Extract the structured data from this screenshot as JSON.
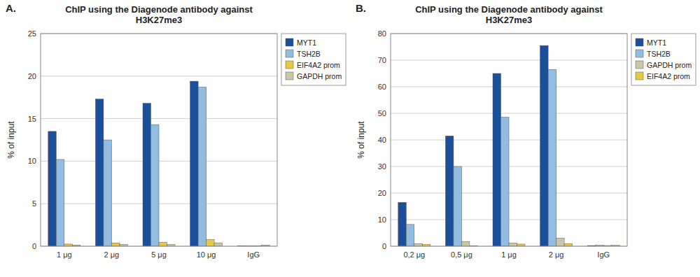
{
  "chart_data": [
    {
      "type": "bar",
      "annotations": [
        "A."
      ],
      "title": "ChIP using the Diagenode antibody against\nH3K27me3",
      "y_label": "% of input",
      "categories": [
        "1 μg",
        "2 μg",
        "5 μg",
        "10 μg",
        "IgG"
      ],
      "series": [
        {
          "name": "MYT1",
          "color": "#1B4F99",
          "values": [
            13.5,
            17.3,
            16.8,
            19.4,
            0.05
          ]
        },
        {
          "name": "TSH2B",
          "color": "#92BDE0",
          "values": [
            10.2,
            12.5,
            14.3,
            18.7,
            0.04
          ]
        },
        {
          "name": "EIF4A2 prom",
          "color": "#E8C840",
          "values": [
            0.25,
            0.38,
            0.45,
            0.78,
            0.04
          ]
        },
        {
          "name": "GAPDH prom",
          "color": "#C8C8A8",
          "values": [
            0.15,
            0.2,
            0.2,
            0.4,
            0.13
          ]
        }
      ],
      "ylim": [
        0,
        25
      ],
      "yticks": [
        0,
        5,
        10,
        15,
        20,
        25
      ],
      "grid": true,
      "legend": "upper right"
    },
    {
      "type": "bar",
      "annotations": [
        "B."
      ],
      "title": "ChIP using the Diagenode antibody against\nH3K27me3",
      "y_label": "% of input",
      "categories": [
        "0,2 μg",
        "0,5 μg",
        "1 μg",
        "2 μg",
        "IgG"
      ],
      "series": [
        {
          "name": "MYT1",
          "color": "#1B4F99",
          "values": [
            16.5,
            41.5,
            65.0,
            75.5,
            0.25
          ]
        },
        {
          "name": "TSH2B",
          "color": "#92BDE0",
          "values": [
            8.2,
            30.0,
            48.5,
            66.5,
            0.35
          ]
        },
        {
          "name": "GAPDH prom",
          "color": "#C8C8A8",
          "values": [
            1.0,
            1.8,
            1.2,
            3.0,
            0.25
          ]
        },
        {
          "name": "EIF4A2 prom",
          "color": "#E8C840",
          "values": [
            0.6,
            0.2,
            0.8,
            1.0,
            0.35
          ]
        }
      ],
      "ylim": [
        0,
        80
      ],
      "yticks": [
        0,
        10,
        20,
        30,
        40,
        50,
        60,
        70,
        80
      ],
      "grid": true,
      "legend": "upper right"
    }
  ]
}
